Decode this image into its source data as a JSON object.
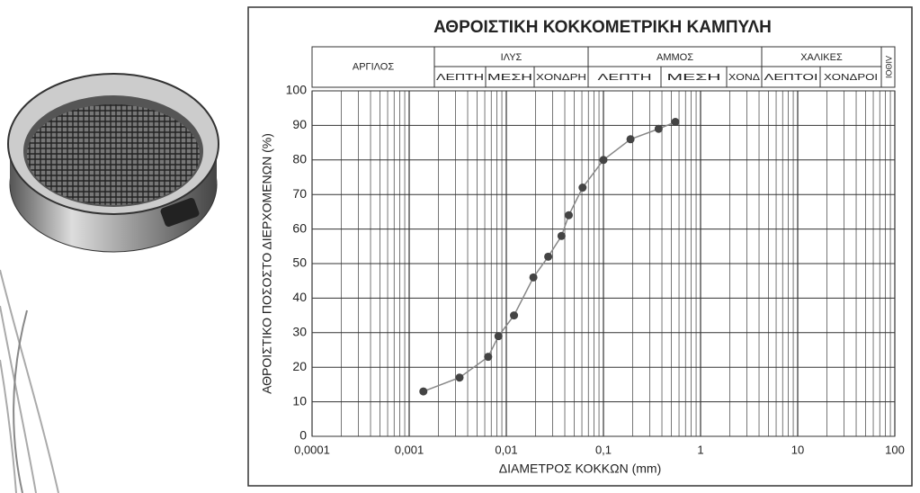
{
  "chart_data": {
    "type": "line",
    "title": "ΑΘΡΟΙΣΤΙΚΗ ΚΟΚΚΟΜΕΤΡΙΚΗ ΚΑΜΠΥΛΗ",
    "x_label": "ΔΙΑΜΕΤΡΟΣ ΚΟΚΚΩΝ (mm)",
    "y_label": "ΑΘΡΟΙΣΤΙΚΟ ΠΟΣΟΣΤΟ ΔΙΕΡΧΟΜΕΝΩΝ (%)",
    "soil_classes": [
      {
        "name": "ΑΡΓΙΛΟΣ"
      },
      {
        "name": "ΙΛΥΣ",
        "subclasses": [
          "ΛΕΠΤΗ",
          "ΜΕΣΗ",
          "ΧΟΝΔΡΗ"
        ]
      },
      {
        "name": "ΑΜΜΟΣ",
        "subclasses": [
          "ΛΕΠΤΗ",
          "ΜΕΣΗ",
          "ΧΟΝΔ"
        ]
      },
      {
        "name": "ΧΑΛΙΚΕΣ",
        "subclasses": [
          "ΛΕΠΤΟΙ",
          "ΧΟΝΔΡΟΙ"
        ]
      },
      {
        "name": "ΛΙΘΟΙ"
      }
    ],
    "x": [
      0.0014,
      0.0033,
      0.0065,
      0.0083,
      0.012,
      0.019,
      0.027,
      0.037,
      0.044,
      0.061,
      0.1,
      0.19,
      0.37,
      0.55
    ],
    "values": [
      13,
      17,
      23,
      29,
      35,
      46,
      52,
      58,
      64,
      72,
      80,
      86,
      89,
      91
    ],
    "color": "#444444",
    "markers": true,
    "xscale": "log",
    "xlim": [
      0.0001,
      100
    ],
    "xticks": [
      {
        "value": 0.0001,
        "label": "0,0001"
      },
      {
        "value": 0.001,
        "label": "0,001"
      },
      {
        "value": 0.01,
        "label": "0,01"
      },
      {
        "value": 0.1,
        "label": "0,1"
      },
      1,
      10,
      100
    ],
    "ylim": [
      0,
      100
    ],
    "yticks": [
      0,
      10,
      20,
      30,
      40,
      50,
      60,
      70,
      80,
      90,
      100
    ],
    "grid": true
  }
}
